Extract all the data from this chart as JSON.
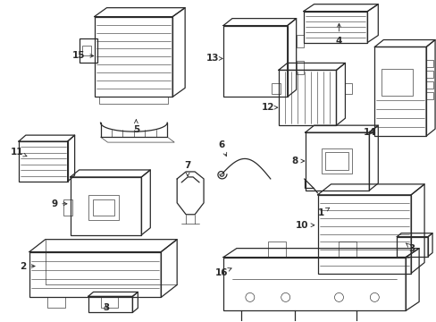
{
  "background_color": "#ffffff",
  "figsize": [
    4.89,
    3.6
  ],
  "dpi": 100,
  "gray": "#2a2a2a",
  "lw_main": 0.9,
  "lw_thin": 0.45,
  "label_fontsize": 7.5
}
